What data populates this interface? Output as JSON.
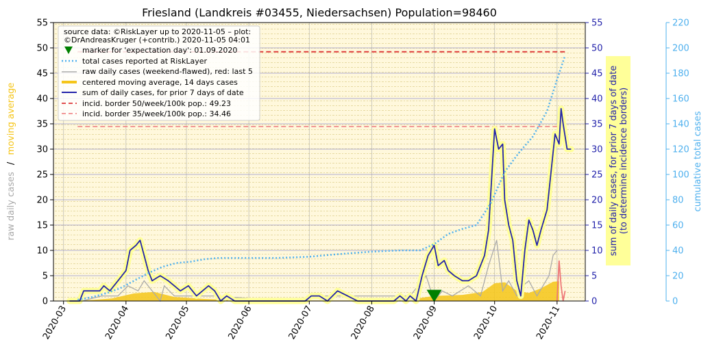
{
  "chart_data": {
    "type": "line",
    "title": "Friesland (Landkreis #03455, Niedersachsen) Population=98460",
    "left_axis_label": {
      "part1": "raw daily cases",
      "separator": "/",
      "part2": "moving average"
    },
    "right_axis_label": {
      "line1": "sum of daily cases, for prior 7 days of date",
      "line2": "(to determine incidence borders)"
    },
    "far_right_axis_label": "cumulative total cases",
    "y_left_ticks": [
      "0",
      "5",
      "10",
      "15",
      "20",
      "25",
      "30",
      "35",
      "40",
      "45",
      "50",
      "55"
    ],
    "y_right_ticks": [
      "0",
      "5",
      "10",
      "15",
      "20",
      "25",
      "30",
      "35",
      "40",
      "45",
      "50",
      "55"
    ],
    "y_far_right_ticks": [
      "0",
      "20",
      "40",
      "60",
      "80",
      "100",
      "120",
      "140",
      "160",
      "180",
      "200",
      "220"
    ],
    "x_ticks": [
      "2020-03",
      "2020-04",
      "2020-05",
      "2020-06",
      "2020-07",
      "2020-08",
      "2020-09",
      "2020-10",
      "2020-11"
    ],
    "ylim_left": [
      0,
      55
    ],
    "ylim_far_right": [
      0,
      220
    ],
    "grid": true,
    "legend_placement": "top-left",
    "legend": {
      "source_line1": "source data: ©RiskLayer up to 2020-11-05 – plot:",
      "source_line2": "©DrAndreasKruger (+contrib.) 2020-11-05 04:01",
      "entries": [
        "marker for 'expectation day': 01.09.2020",
        "total cases reported at RiskLayer",
        "raw daily cases (weekend-flawed), red: last 5",
        "centered moving average, 14 days cases",
        "sum of daily cases, for prior 7 days of date",
        "incid. border 50/week/100k pop.: 49.23",
        "incid. border 35/week/100k pop.: 34.46"
      ]
    },
    "series": [
      {
        "name": "sum of daily cases, for prior 7 days of date",
        "color": "#2222aa",
        "x": [
          "2020-03-04",
          "2020-03-09",
          "2020-03-11",
          "2020-03-19",
          "2020-03-21",
          "2020-03-24",
          "2020-03-28",
          "2020-04-01",
          "2020-04-03",
          "2020-04-06",
          "2020-04-08",
          "2020-04-10",
          "2020-04-12",
          "2020-04-14",
          "2020-04-18",
          "2020-04-22",
          "2020-04-25",
          "2020-04-28",
          "2020-05-02",
          "2020-05-06",
          "2020-05-09",
          "2020-05-12",
          "2020-05-15",
          "2020-05-18",
          "2020-05-21",
          "2020-05-25",
          "2020-05-29",
          "2020-06-15",
          "2020-06-25",
          "2020-06-29",
          "2020-07-02",
          "2020-07-06",
          "2020-07-10",
          "2020-07-15",
          "2020-07-20",
          "2020-07-25",
          "2020-08-12",
          "2020-08-15",
          "2020-08-18",
          "2020-08-20",
          "2020-08-23",
          "2020-08-26",
          "2020-08-29",
          "2020-09-01",
          "2020-09-03",
          "2020-09-06",
          "2020-09-08",
          "2020-09-11",
          "2020-09-15",
          "2020-09-18",
          "2020-09-22",
          "2020-09-26",
          "2020-09-28",
          "2020-10-01",
          "2020-10-03",
          "2020-10-05",
          "2020-10-06",
          "2020-10-08",
          "2020-10-10",
          "2020-10-12",
          "2020-10-14",
          "2020-10-16",
          "2020-10-18",
          "2020-10-20",
          "2020-10-22",
          "2020-10-24",
          "2020-10-27",
          "2020-10-31",
          "2020-11-02",
          "2020-11-03",
          "2020-11-04",
          "2020-11-06",
          "2020-11-08"
        ],
        "values": [
          0,
          0,
          2,
          2,
          3,
          2,
          4,
          6,
          10,
          11,
          12,
          9,
          6,
          4,
          5,
          4,
          3,
          2,
          3,
          1,
          2,
          3,
          2,
          0,
          1,
          0,
          0,
          0,
          0,
          0,
          1,
          1,
          0,
          2,
          1,
          0,
          0,
          1,
          0,
          1,
          0,
          5,
          9,
          11,
          7,
          8,
          6,
          5,
          4,
          4,
          5,
          9,
          14,
          34,
          30,
          31,
          20,
          15,
          12,
          4,
          1,
          10,
          16,
          14,
          11,
          14,
          18,
          33,
          31,
          38,
          35,
          30,
          30
        ]
      },
      {
        "name": "total cases reported at RiskLayer",
        "color": "#4eb0ee",
        "axis": "far_right",
        "x": [
          "2020-03-08",
          "2020-03-15",
          "2020-03-22",
          "2020-03-29",
          "2020-04-05",
          "2020-04-12",
          "2020-04-19",
          "2020-04-26",
          "2020-05-03",
          "2020-05-10",
          "2020-05-17",
          "2020-05-24",
          "2020-06-15",
          "2020-07-01",
          "2020-07-15",
          "2020-08-01",
          "2020-08-15",
          "2020-08-25",
          "2020-09-01",
          "2020-09-08",
          "2020-09-15",
          "2020-09-22",
          "2020-09-29",
          "2020-10-06",
          "2020-10-13",
          "2020-10-20",
          "2020-10-27",
          "2020-11-01",
          "2020-11-05"
        ],
        "values": [
          1,
          3,
          6,
          10,
          16,
          22,
          27,
          30,
          31,
          33,
          34,
          34,
          34,
          35,
          37,
          39,
          40,
          40,
          45,
          53,
          57,
          60,
          77,
          102,
          117,
          130,
          150,
          175,
          194
        ]
      },
      {
        "name": "centered moving average, 14 days cases",
        "color": "#f5c518",
        "x": [
          "2020-03-04",
          "2020-03-15",
          "2020-03-25",
          "2020-04-05",
          "2020-04-15",
          "2020-04-25",
          "2020-05-10",
          "2020-06-01",
          "2020-07-01",
          "2020-08-01",
          "2020-08-20",
          "2020-09-01",
          "2020-09-15",
          "2020-09-25",
          "2020-10-01",
          "2020-10-06",
          "2020-10-12",
          "2020-10-18",
          "2020-10-24",
          "2020-10-30",
          "2020-11-02"
        ],
        "values": [
          0,
          0.2,
          0.5,
          1.5,
          1.8,
          0.8,
          0.4,
          0.1,
          0.1,
          0.1,
          0.3,
          1.0,
          1.2,
          1.8,
          3.5,
          3.7,
          2.0,
          1.6,
          2.5,
          3.8,
          3.9
        ]
      },
      {
        "name": "raw daily cases (weekend-flawed), red: last 5",
        "color": "#aaaaaa",
        "x": [
          "2020-03-10",
          "2020-03-20",
          "2020-03-28",
          "2020-04-02",
          "2020-04-07",
          "2020-04-10",
          "2020-04-14",
          "2020-04-18",
          "2020-04-20",
          "2020-04-25",
          "2020-05-05",
          "2020-05-15",
          "2020-06-20",
          "2020-07-05",
          "2020-07-18",
          "2020-08-20",
          "2020-08-28",
          "2020-09-01",
          "2020-09-05",
          "2020-09-10",
          "2020-09-18",
          "2020-09-24",
          "2020-09-28",
          "2020-10-02",
          "2020-10-05",
          "2020-10-08",
          "2020-10-12",
          "2020-10-15",
          "2020-10-18",
          "2020-10-22",
          "2020-10-25",
          "2020-10-28",
          "2020-10-30",
          "2020-11-01"
        ],
        "values": [
          0,
          1,
          1,
          3,
          2,
          4,
          2,
          0,
          3,
          1,
          1,
          1,
          0,
          1,
          1,
          1,
          5,
          0,
          2,
          1,
          3,
          1,
          7,
          12,
          2,
          4,
          1,
          3,
          4,
          1,
          3,
          5,
          9,
          10
        ]
      },
      {
        "name": "raw daily cases, last 5 (red)",
        "color": "#ee7777",
        "x": [
          "2020-11-01",
          "2020-11-02",
          "2020-11-03",
          "2020-11-04",
          "2020-11-05"
        ],
        "values": [
          0,
          8,
          3,
          0,
          2
        ]
      }
    ],
    "expectation_marker": {
      "date": "2020-09-01",
      "value": 1,
      "color": "#008000"
    },
    "incidence_borders": [
      {
        "value": 49.23,
        "color": "#dd3333"
      },
      {
        "value": 34.46,
        "color": "#f08a8a"
      }
    ],
    "x_range": [
      "2020-02-25",
      "2020-11-15"
    ]
  },
  "colors": {
    "plot_background": "#fff8dc",
    "highlight_yellow": "#ffff99",
    "right_axis": "#2222aa",
    "far_right_axis": "#4eb0ee",
    "left_label_gray": "#aaaaaa",
    "left_label_yellow": "#f5c518"
  }
}
